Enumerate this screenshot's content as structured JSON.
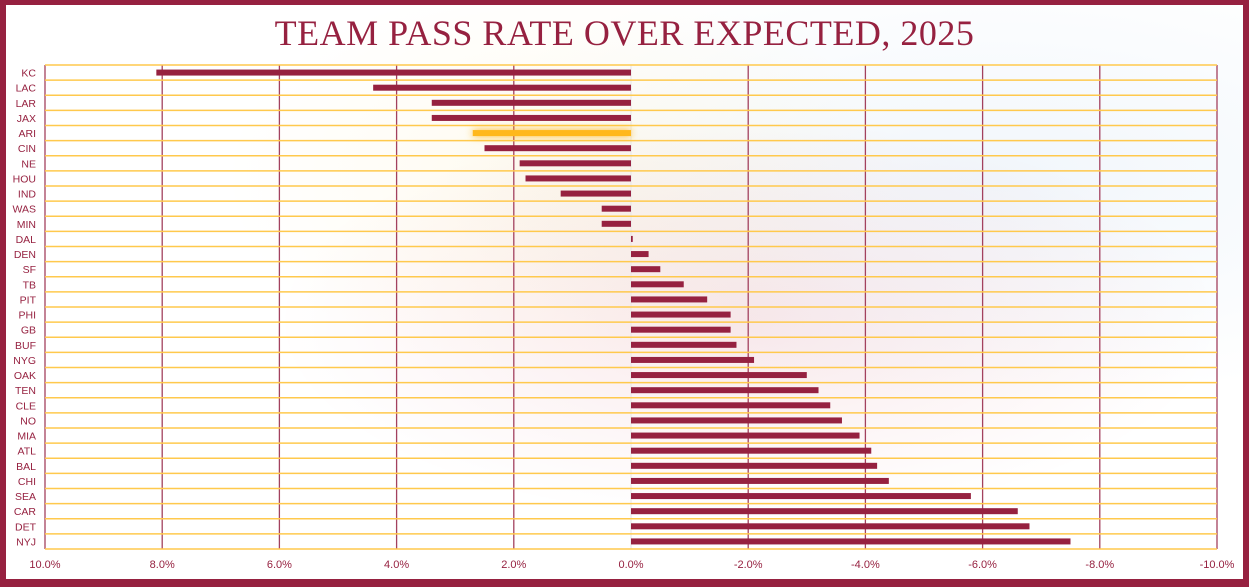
{
  "chart_data": {
    "type": "bar",
    "orientation": "horizontal",
    "title": "TEAM PASS RATE OVER EXPECTED, 2025",
    "xlabel": "",
    "ylabel": "",
    "xlim": [
      10.0,
      -10.0
    ],
    "x_reversed": true,
    "x_ticks": [
      "10.0%",
      "8.0%",
      "6.0%",
      "4.0%",
      "2.0%",
      "0.0%",
      "-2.0%",
      "-4.0%",
      "-6.0%",
      "-8.0%",
      "-10.0%"
    ],
    "x_tick_values": [
      10,
      8,
      6,
      4,
      2,
      0,
      -2,
      -4,
      -6,
      -8,
      -10
    ],
    "grid": true,
    "categories": [
      "KC",
      "LAC",
      "LAR",
      "JAX",
      "ARI",
      "CIN",
      "NE",
      "HOU",
      "IND",
      "WAS",
      "MIN",
      "DAL",
      "DEN",
      "SF",
      "TB",
      "PIT",
      "PHI",
      "GB",
      "BUF",
      "NYG",
      "OAK",
      "TEN",
      "CLE",
      "NO",
      "MIA",
      "ATL",
      "BAL",
      "CHI",
      "SEA",
      "CAR",
      "DET",
      "NYJ"
    ],
    "values": [
      8.1,
      4.4,
      3.4,
      3.4,
      2.7,
      2.5,
      1.9,
      1.8,
      1.2,
      0.5,
      0.5,
      -0.03,
      -0.3,
      -0.5,
      -0.9,
      -1.3,
      -1.7,
      -1.7,
      -1.8,
      -2.1,
      -3.0,
      -3.2,
      -3.4,
      -3.6,
      -3.9,
      -4.1,
      -4.2,
      -4.4,
      -5.8,
      -6.6,
      -6.8,
      -7.5
    ],
    "highlight": "ARI",
    "colors": {
      "bar": "#962140",
      "highlight": "#ffb81c",
      "grid_h": "#ffc94d",
      "grid_v": "#a3415e",
      "text": "#962140"
    }
  }
}
